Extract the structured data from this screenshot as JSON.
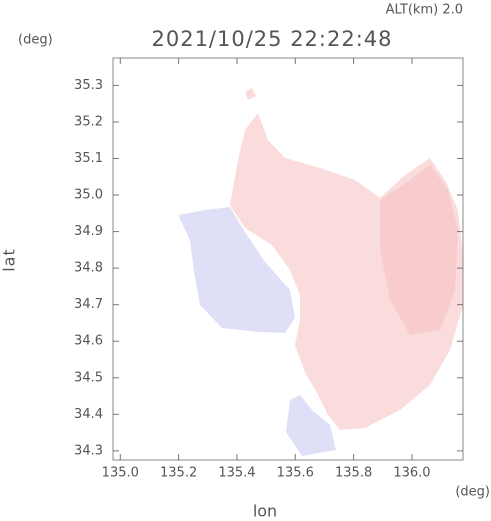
{
  "chart_data": {
    "type": "radar-map",
    "title": "2021/10/25 22:22:48",
    "subtitle": "ALT(km) 2.0",
    "x_label": "lon",
    "x_unit": "(deg)",
    "y_label": "lat",
    "y_unit": "(deg)",
    "xlim": [
      134.975,
      136.175
    ],
    "ylim": [
      34.275,
      35.375
    ],
    "xticks": [
      {
        "value": 135,
        "label": "135.0"
      },
      135.2,
      135.4,
      135.6,
      135.8,
      {
        "value": 136,
        "label": "136.0"
      }
    ],
    "yticks": [
      34.3,
      34.4,
      34.5,
      34.6,
      34.7,
      34.8,
      34.9,
      {
        "value": 35,
        "label": "35.0"
      },
      35.1,
      35.2,
      35.3
    ]
  }
}
